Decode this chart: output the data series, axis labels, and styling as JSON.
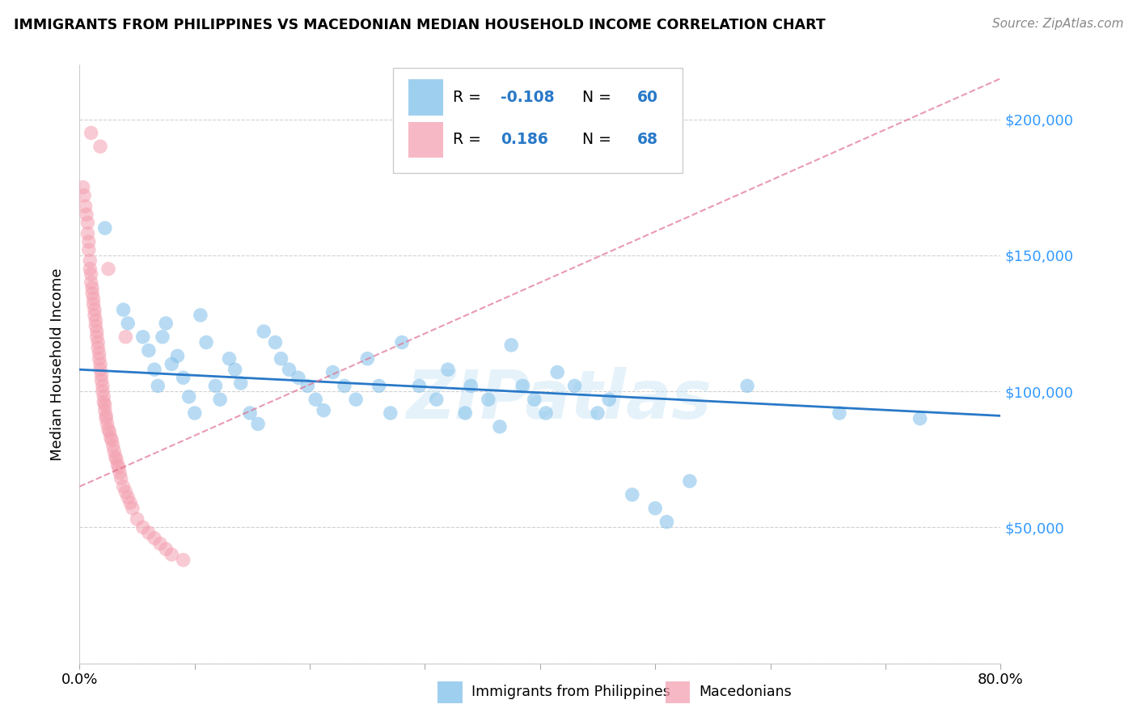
{
  "title": "IMMIGRANTS FROM PHILIPPINES VS MACEDONIAN MEDIAN HOUSEHOLD INCOME CORRELATION CHART",
  "source": "Source: ZipAtlas.com",
  "ylabel": "Median Household Income",
  "legend_label_1": "Immigrants from Philippines",
  "legend_label_2": "Macedonians",
  "R1": -0.108,
  "N1": 60,
  "R2": 0.186,
  "N2": 68,
  "color_blue": "#7fbfea",
  "color_pink": "#f4a0b0",
  "color_blue_line": "#2979c8",
  "color_pink_line": "#e07090",
  "color_right_axis": "#3399ff",
  "xlim": [
    0.0,
    0.8
  ],
  "ylim": [
    0,
    220000
  ],
  "yticks": [
    0,
    50000,
    100000,
    150000,
    200000
  ],
  "xticks": [
    0.0,
    0.1,
    0.2,
    0.3,
    0.4,
    0.5,
    0.6,
    0.7,
    0.8
  ],
  "watermark": "ZIPatlas",
  "blue_scatter_x": [
    0.022,
    0.038,
    0.042,
    0.055,
    0.06,
    0.065,
    0.068,
    0.072,
    0.075,
    0.08,
    0.085,
    0.09,
    0.095,
    0.1,
    0.105,
    0.11,
    0.118,
    0.122,
    0.13,
    0.135,
    0.14,
    0.148,
    0.155,
    0.16,
    0.17,
    0.175,
    0.182,
    0.19,
    0.198,
    0.205,
    0.212,
    0.22,
    0.23,
    0.24,
    0.25,
    0.26,
    0.27,
    0.28,
    0.295,
    0.31,
    0.32,
    0.335,
    0.34,
    0.355,
    0.365,
    0.375,
    0.385,
    0.395,
    0.405,
    0.415,
    0.43,
    0.45,
    0.46,
    0.48,
    0.5,
    0.51,
    0.53,
    0.58,
    0.66,
    0.73
  ],
  "blue_scatter_y": [
    160000,
    130000,
    125000,
    120000,
    115000,
    108000,
    102000,
    120000,
    125000,
    110000,
    113000,
    105000,
    98000,
    92000,
    128000,
    118000,
    102000,
    97000,
    112000,
    108000,
    103000,
    92000,
    88000,
    122000,
    118000,
    112000,
    108000,
    105000,
    102000,
    97000,
    93000,
    107000,
    102000,
    97000,
    112000,
    102000,
    92000,
    118000,
    102000,
    97000,
    108000,
    92000,
    102000,
    97000,
    87000,
    117000,
    102000,
    97000,
    92000,
    107000,
    102000,
    92000,
    97000,
    62000,
    57000,
    52000,
    67000,
    102000,
    92000,
    90000
  ],
  "pink_scatter_x": [
    0.003,
    0.004,
    0.005,
    0.006,
    0.007,
    0.007,
    0.008,
    0.008,
    0.009,
    0.009,
    0.01,
    0.01,
    0.011,
    0.011,
    0.012,
    0.012,
    0.013,
    0.013,
    0.014,
    0.014,
    0.015,
    0.015,
    0.016,
    0.016,
    0.017,
    0.017,
    0.018,
    0.018,
    0.019,
    0.019,
    0.02,
    0.02,
    0.021,
    0.021,
    0.022,
    0.022,
    0.023,
    0.023,
    0.024,
    0.025,
    0.026,
    0.027,
    0.028,
    0.029,
    0.03,
    0.031,
    0.032,
    0.033,
    0.034,
    0.035,
    0.036,
    0.038,
    0.04,
    0.042,
    0.044,
    0.046,
    0.05,
    0.055,
    0.06,
    0.065,
    0.07,
    0.075,
    0.08,
    0.09,
    0.04,
    0.025,
    0.018,
    0.01
  ],
  "pink_scatter_y": [
    175000,
    172000,
    168000,
    165000,
    162000,
    158000,
    155000,
    152000,
    148000,
    145000,
    143000,
    140000,
    138000,
    136000,
    134000,
    132000,
    130000,
    128000,
    126000,
    124000,
    122000,
    120000,
    118000,
    116000,
    114000,
    112000,
    110000,
    108000,
    106000,
    104000,
    102000,
    100000,
    98000,
    96000,
    95000,
    93000,
    91000,
    90000,
    88000,
    86000,
    85000,
    83000,
    82000,
    80000,
    78000,
    76000,
    75000,
    73000,
    72000,
    70000,
    68000,
    65000,
    63000,
    61000,
    59000,
    57000,
    53000,
    50000,
    48000,
    46000,
    44000,
    42000,
    40000,
    38000,
    120000,
    145000,
    190000,
    195000
  ]
}
